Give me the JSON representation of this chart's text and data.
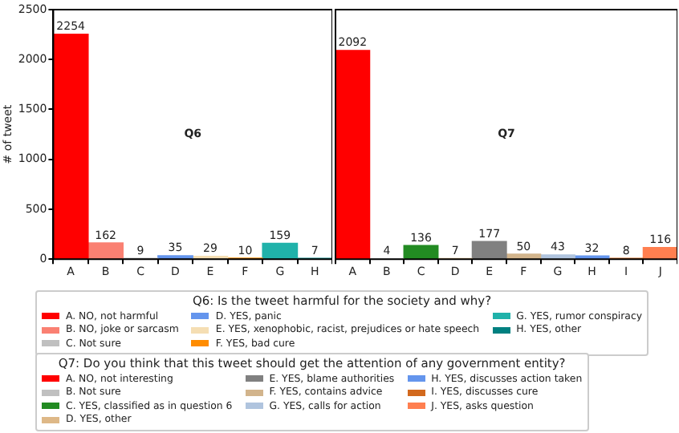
{
  "chart_data": [
    {
      "type": "bar",
      "ylabel": "# of tweet",
      "legend_title": "Q6: Is the tweet harmful for the society and why?",
      "annotations": [
        "Q6"
      ],
      "categories": [
        "A",
        "B",
        "C",
        "D",
        "E",
        "F",
        "G",
        "H"
      ],
      "ylim": [
        0,
        2500
      ],
      "yticks": [
        0,
        500,
        1000,
        1500,
        2000,
        2500
      ],
      "data_labels": true,
      "legend": "bottom",
      "grid": false,
      "series": [
        {
          "name": "A. NO, not harmful",
          "color": "#ff0000",
          "values": [
            2254,
            null,
            null,
            null,
            null,
            null,
            null,
            null
          ]
        },
        {
          "name": "B. NO, joke or sarcasm",
          "color": "#fa8072",
          "values": [
            null,
            162,
            null,
            null,
            null,
            null,
            null,
            null
          ]
        },
        {
          "name": "C. Not sure",
          "color": "#c0c0c0",
          "values": [
            null,
            null,
            9,
            null,
            null,
            null,
            null,
            null
          ]
        },
        {
          "name": "D. YES, panic",
          "color": "#6495ed",
          "values": [
            null,
            null,
            null,
            35,
            null,
            null,
            null,
            null
          ]
        },
        {
          "name": "E. YES, xenophobic, racist, prejudices or hate speech",
          "color": "#f5deb3",
          "values": [
            null,
            null,
            null,
            null,
            29,
            null,
            null,
            null
          ]
        },
        {
          "name": "F. YES, bad cure",
          "color": "#ff8c00",
          "values": [
            null,
            null,
            null,
            null,
            null,
            10,
            null,
            null
          ]
        },
        {
          "name": "G. YES, rumor conspiracy",
          "color": "#20b2aa",
          "values": [
            null,
            null,
            null,
            null,
            null,
            null,
            159,
            null
          ]
        },
        {
          "name": "H. YES, other",
          "color": "#008080",
          "values": [
            null,
            null,
            null,
            null,
            null,
            null,
            null,
            7
          ]
        }
      ]
    },
    {
      "type": "bar",
      "legend_title": "Q7: Do you think that this tweet should get the attention of any government entity?",
      "annotations": [
        "Q7"
      ],
      "categories": [
        "A",
        "B",
        "C",
        "D",
        "E",
        "F",
        "G",
        "H",
        "I",
        "J"
      ],
      "ylim": [
        0,
        2500
      ],
      "tick_labels": "x",
      "data_labels": true,
      "legend": "bottom",
      "grid": false,
      "series": [
        {
          "name": "A. NO, not interesting",
          "color": "#ff0000",
          "values": [
            2092,
            null,
            null,
            null,
            null,
            null,
            null,
            null,
            null,
            null
          ]
        },
        {
          "name": "B. Not sure",
          "color": "#c0c0c0",
          "values": [
            null,
            4,
            null,
            null,
            null,
            null,
            null,
            null,
            null,
            null
          ]
        },
        {
          "name": "C. YES, classified as in question 6",
          "color": "#228b22",
          "values": [
            null,
            null,
            136,
            null,
            null,
            null,
            null,
            null,
            null,
            null
          ]
        },
        {
          "name": "D. YES, other",
          "color": "#deb887",
          "values": [
            null,
            null,
            null,
            7,
            null,
            null,
            null,
            null,
            null,
            null
          ]
        },
        {
          "name": "E. YES, blame authorities",
          "color": "#808080",
          "values": [
            null,
            null,
            null,
            null,
            177,
            null,
            null,
            null,
            null,
            null
          ]
        },
        {
          "name": "F. YES, contains advice",
          "color": "#d2b48c",
          "values": [
            null,
            null,
            null,
            null,
            null,
            50,
            null,
            null,
            null,
            null
          ]
        },
        {
          "name": "G. YES, calls for action",
          "color": "#b0c4de",
          "values": [
            null,
            null,
            null,
            null,
            null,
            null,
            43,
            null,
            null,
            null
          ]
        },
        {
          "name": "H. YES, discusses action taken",
          "color": "#6495ed",
          "values": [
            null,
            null,
            null,
            null,
            null,
            null,
            null,
            32,
            null,
            null
          ]
        },
        {
          "name": "I. YES, discusses cure",
          "color": "#d2691e",
          "values": [
            null,
            null,
            null,
            null,
            null,
            null,
            null,
            null,
            8,
            null
          ]
        },
        {
          "name": "J. YES, asks question",
          "color": "#ff7f50",
          "values": [
            null,
            null,
            null,
            null,
            null,
            null,
            null,
            null,
            null,
            116
          ]
        }
      ]
    }
  ]
}
